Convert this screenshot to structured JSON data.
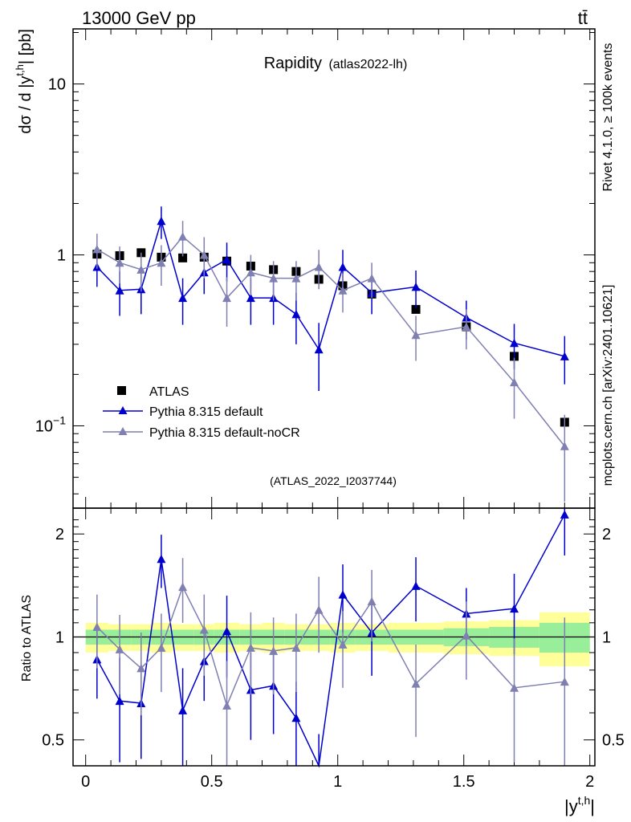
{
  "header": {
    "left": "13000 GeV pp",
    "right": "tt̄"
  },
  "side_labels": {
    "rivet": "Rivet 4.1.0, ≥ 100k events",
    "mcplots": "mcplots.cern.ch [arXiv:2401.10621]"
  },
  "chart_data": {
    "type": "line",
    "title": "Rapidity",
    "title_tag": "(atlas2022-lh)",
    "analysis_id": "(ATLAS_2022_I2037744)",
    "xlabel": "|y^{t,h}|",
    "ylabel": "dσ / d |y^{t,h}| [pb]",
    "ratio_ylabel": "Ratio to ATLAS",
    "xlim": [
      -0.05,
      2.02
    ],
    "ylim": [
      0.033,
      21
    ],
    "yscale": "log",
    "ratio_ylim": [
      0.42,
      2.38
    ],
    "ratio_yscale": "log",
    "x_ticks": [
      "0",
      "0.5",
      "1",
      "1.5",
      "2"
    ],
    "y_ticks": [
      "10",
      "1",
      "10^{-1}"
    ],
    "ratio_ticks": [
      "2",
      "1",
      "0.5"
    ],
    "bins": [
      [
        0.0,
        0.09
      ],
      [
        0.09,
        0.18
      ],
      [
        0.18,
        0.26
      ],
      [
        0.26,
        0.34
      ],
      [
        0.34,
        0.43
      ],
      [
        0.43,
        0.51
      ],
      [
        0.51,
        0.61
      ],
      [
        0.61,
        0.7
      ],
      [
        0.7,
        0.79
      ],
      [
        0.79,
        0.88
      ],
      [
        0.88,
        0.97
      ],
      [
        0.97,
        1.07
      ],
      [
        1.07,
        1.2
      ],
      [
        1.2,
        1.42
      ],
      [
        1.42,
        1.6
      ],
      [
        1.6,
        1.8
      ],
      [
        1.8,
        2.0
      ]
    ],
    "band_total_rel": [
      0.1,
      0.09,
      0.09,
      0.1,
      0.09,
      0.09,
      0.1,
      0.09,
      0.1,
      0.09,
      0.09,
      0.1,
      0.09,
      0.1,
      0.11,
      0.12,
      0.18
    ],
    "band_stat_rel": [
      0.05,
      0.05,
      0.05,
      0.05,
      0.05,
      0.05,
      0.05,
      0.05,
      0.05,
      0.05,
      0.05,
      0.05,
      0.05,
      0.05,
      0.06,
      0.07,
      0.1
    ],
    "legend": [
      "ATLAS",
      "Pythia 8.315 default",
      "Pythia 8.315 default-noCR"
    ],
    "series": [
      {
        "name": "ATLAS",
        "color": "#000000",
        "marker": "square",
        "x": [
          0.045,
          0.135,
          0.22,
          0.3,
          0.385,
          0.47,
          0.56,
          0.655,
          0.745,
          0.835,
          0.925,
          1.02,
          1.135,
          1.31,
          1.51,
          1.7,
          1.9
        ],
        "values": [
          1.01,
          0.99,
          1.03,
          0.97,
          0.96,
          0.97,
          0.92,
          0.86,
          0.82,
          0.8,
          0.72,
          0.66,
          0.59,
          0.48,
          0.38,
          0.255,
          0.105
        ]
      },
      {
        "name": "Pythia 8.315 default",
        "color": "#0000cc",
        "marker": "triangle",
        "x": [
          0.045,
          0.135,
          0.22,
          0.3,
          0.385,
          0.47,
          0.56,
          0.655,
          0.745,
          0.835,
          0.925,
          1.02,
          1.135,
          1.31,
          1.51,
          1.7,
          1.9
        ],
        "values": [
          0.85,
          0.62,
          0.63,
          1.58,
          0.56,
          0.79,
          0.94,
          0.56,
          0.56,
          0.45,
          0.28,
          0.85,
          0.6,
          0.65,
          0.43,
          0.305,
          0.255
        ],
        "errors": [
          0.2,
          0.18,
          0.18,
          0.34,
          0.17,
          0.2,
          0.24,
          0.17,
          0.17,
          0.15,
          0.12,
          0.22,
          0.15,
          0.16,
          0.11,
          0.09,
          0.08
        ],
        "ratio": [
          0.86,
          0.65,
          0.64,
          1.69,
          0.61,
          0.85,
          1.04,
          0.7,
          0.72,
          0.58,
          0.4,
          1.33,
          1.03,
          1.41,
          1.17,
          1.21,
          2.28
        ],
        "ratio_errors": [
          0.2,
          0.22,
          0.2,
          0.3,
          0.2,
          0.2,
          0.28,
          0.2,
          0.2,
          0.16,
          0.12,
          0.3,
          0.26,
          0.3,
          0.22,
          0.32,
          0.55
        ]
      },
      {
        "name": "Pythia 8.315 default-noCR",
        "color": "#7f7fb2",
        "marker": "triangle",
        "x": [
          0.045,
          0.135,
          0.22,
          0.3,
          0.385,
          0.47,
          0.56,
          0.655,
          0.745,
          0.835,
          0.925,
          1.02,
          1.135,
          1.31,
          1.51,
          1.7,
          1.9
        ],
        "values": [
          1.08,
          0.9,
          0.82,
          0.9,
          1.28,
          1.0,
          0.56,
          0.79,
          0.73,
          0.73,
          0.85,
          0.62,
          0.73,
          0.34,
          0.38,
          0.18,
          0.076
        ],
        "errors": [
          0.25,
          0.22,
          0.21,
          0.24,
          0.3,
          0.27,
          0.18,
          0.21,
          0.19,
          0.19,
          0.22,
          0.16,
          0.17,
          0.1,
          0.1,
          0.07,
          0.04
        ],
        "ratio": [
          1.07,
          0.92,
          0.81,
          0.93,
          1.4,
          1.05,
          0.63,
          0.93,
          0.91,
          0.93,
          1.2,
          0.95,
          1.27,
          0.73,
          1.01,
          0.71,
          0.74
        ],
        "ratio_errors": [
          0.26,
          0.24,
          0.22,
          0.24,
          0.3,
          0.28,
          0.22,
          0.25,
          0.23,
          0.24,
          0.3,
          0.24,
          0.3,
          0.22,
          0.26,
          0.28,
          0.4
        ]
      }
    ]
  }
}
